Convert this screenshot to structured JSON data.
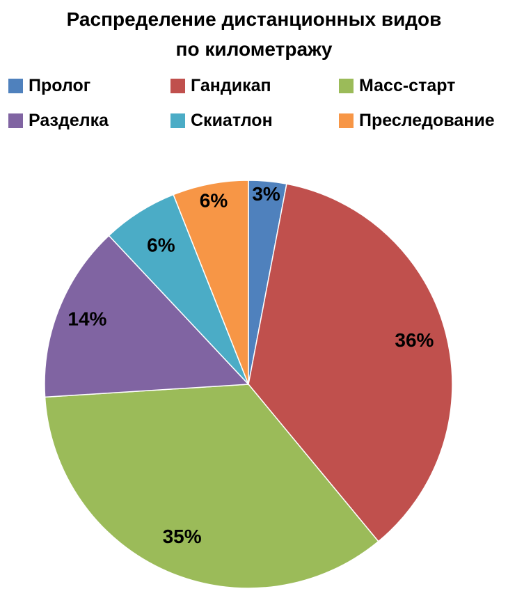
{
  "title": {
    "line1": "Распределение дистанционных видов",
    "line2": "по километражу"
  },
  "chart_data": {
    "type": "pie",
    "title": "Распределение дистанционных видов по километражу",
    "legend_position": "top",
    "start_angle_deg": 0,
    "direction": "clockwise",
    "slices": [
      {
        "id": "prolog",
        "label": "Пролог",
        "value": 3,
        "display": "3%",
        "color": "#4F81BD",
        "label_r": 0.93
      },
      {
        "id": "gandikap",
        "label": "Гандикап",
        "value": 36,
        "display": "36%",
        "color": "#C0504D",
        "label_r": 0.84
      },
      {
        "id": "mass-start",
        "label": "Масс-старт",
        "value": 35,
        "display": "35%",
        "color": "#9BBB59",
        "label_r": 0.82
      },
      {
        "id": "razdelka",
        "label": "Разделка",
        "value": 14,
        "display": "14%",
        "color": "#8064A2",
        "label_r": 0.85
      },
      {
        "id": "skiatlon",
        "label": "Скиатлон",
        "value": 6,
        "display": "6%",
        "color": "#4BACC6",
        "label_r": 0.8
      },
      {
        "id": "presledovanie",
        "label": "Преследование",
        "value": 6,
        "display": "6%",
        "color": "#F79646",
        "label_r": 0.91
      }
    ]
  }
}
